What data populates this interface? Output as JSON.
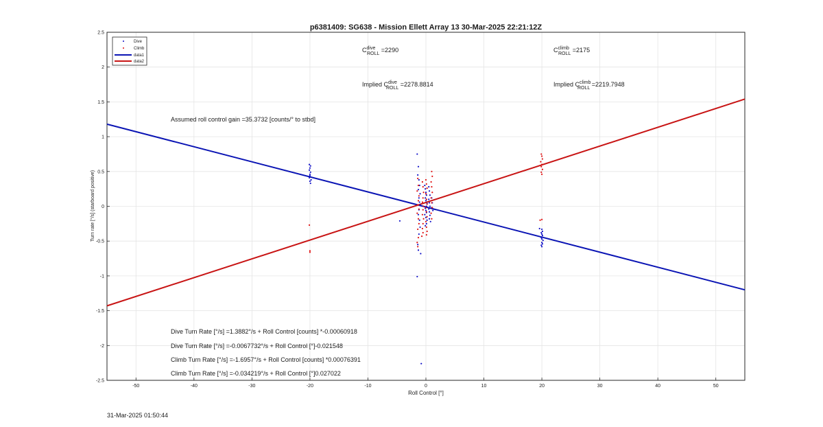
{
  "chart_data": {
    "type": "scatter",
    "title": "p6381409: SG638 - Mission Ellett Array 13 30-Mar-2025 22:21:12Z",
    "xlabel": "Roll Control [°]",
    "ylabel": "Turn rate [°/s] (starboard positive)",
    "xlim": [
      -55,
      55
    ],
    "ylim": [
      -2.5,
      2.5
    ],
    "xticks": [
      -50,
      -40,
      -30,
      -20,
      -10,
      0,
      10,
      20,
      30,
      40,
      50
    ],
    "yticks": [
      -2.5,
      -2,
      -1.5,
      -1,
      -0.5,
      0,
      0.5,
      1,
      1.5,
      2,
      2.5
    ],
    "grid": true,
    "legend_position": "top-left",
    "legend": [
      "Dive",
      "Climb",
      "data1",
      "data2"
    ],
    "colors": {
      "dive": "#1010c8",
      "climb": "#e01010",
      "data1": "#0a14b4",
      "data2": "#c81414"
    },
    "series": [
      {
        "name": "Dive",
        "marker": "dot",
        "points": [
          [
            -20.1,
            0.6
          ],
          [
            -19.9,
            0.58
          ],
          [
            -20.0,
            0.55
          ],
          [
            -20.1,
            0.52
          ],
          [
            -19.9,
            0.49
          ],
          [
            -20.0,
            0.46
          ],
          [
            -20.0,
            0.44
          ],
          [
            -20.1,
            0.41
          ],
          [
            -19.8,
            0.38
          ],
          [
            -20.0,
            0.36
          ],
          [
            -19.9,
            0.33
          ],
          [
            -4.5,
            -0.21
          ],
          [
            -1.5,
            0.75
          ],
          [
            -1.3,
            0.57
          ],
          [
            -1.4,
            0.45
          ],
          [
            -1.2,
            0.38
          ],
          [
            -1.1,
            0.3
          ],
          [
            -1.3,
            0.24
          ],
          [
            -1.0,
            0.18
          ],
          [
            -1.2,
            0.12
          ],
          [
            -1.1,
            0.06
          ],
          [
            -1.0,
            0.02
          ],
          [
            -1.2,
            -0.05
          ],
          [
            -1.3,
            -0.12
          ],
          [
            -1.1,
            -0.2
          ],
          [
            -1.0,
            -0.3
          ],
          [
            -1.2,
            -0.4
          ],
          [
            -1.4,
            -0.55
          ],
          [
            -1.3,
            -0.63
          ],
          [
            -1.5,
            -1.01
          ],
          [
            -0.8,
            -2.26
          ],
          [
            -0.9,
            -0.68
          ],
          [
            -0.2,
            0.3
          ],
          [
            -0.1,
            0.25
          ],
          [
            0.0,
            0.2
          ],
          [
            0.1,
            0.16
          ],
          [
            -0.1,
            0.12
          ],
          [
            0.0,
            0.08
          ],
          [
            0.2,
            0.04
          ],
          [
            0.1,
            0.0
          ],
          [
            -0.1,
            -0.03
          ],
          [
            0.0,
            -0.06
          ],
          [
            0.1,
            -0.09
          ],
          [
            -0.2,
            -0.12
          ],
          [
            0.0,
            -0.16
          ],
          [
            0.2,
            -0.2
          ],
          [
            0.1,
            -0.25
          ],
          [
            -0.1,
            -0.28
          ],
          [
            0.5,
            0.28
          ],
          [
            0.6,
            0.22
          ],
          [
            0.7,
            0.16
          ],
          [
            0.5,
            0.1
          ],
          [
            0.6,
            0.05
          ],
          [
            0.7,
            0.0
          ],
          [
            0.5,
            -0.04
          ],
          [
            0.6,
            -0.08
          ],
          [
            0.7,
            -0.13
          ],
          [
            0.6,
            -0.18
          ],
          [
            0.8,
            -0.22
          ],
          [
            1.0,
            0.12
          ],
          [
            1.1,
            0.05
          ],
          [
            1.0,
            -0.02
          ],
          [
            1.2,
            -0.06
          ],
          [
            19.6,
            -0.32
          ],
          [
            20.0,
            -0.33
          ],
          [
            20.1,
            -0.36
          ],
          [
            19.9,
            -0.38
          ],
          [
            20.0,
            -0.4
          ],
          [
            20.1,
            -0.42
          ],
          [
            19.9,
            -0.45
          ],
          [
            20.0,
            -0.47
          ],
          [
            20.2,
            -0.49
          ],
          [
            20.0,
            -0.52
          ],
          [
            20.1,
            -0.54
          ],
          [
            19.9,
            -0.56
          ],
          [
            20.0,
            -0.58
          ]
        ]
      },
      {
        "name": "Climb",
        "marker": "dot",
        "points": [
          [
            -20.1,
            -0.27
          ],
          [
            -20.0,
            -0.64
          ],
          [
            -20.0,
            -0.66
          ],
          [
            -1.4,
            0.4
          ],
          [
            -1.3,
            0.3
          ],
          [
            -1.5,
            0.22
          ],
          [
            -1.2,
            0.15
          ],
          [
            -1.3,
            0.08
          ],
          [
            -1.4,
            0.02
          ],
          [
            -1.2,
            -0.04
          ],
          [
            -1.5,
            -0.1
          ],
          [
            -1.3,
            -0.18
          ],
          [
            -1.2,
            -0.25
          ],
          [
            -1.4,
            -0.33
          ],
          [
            -1.3,
            -0.45
          ],
          [
            -1.5,
            -0.52
          ],
          [
            -1.4,
            -0.58
          ],
          [
            -0.6,
            0.35
          ],
          [
            -0.5,
            0.28
          ],
          [
            -0.4,
            0.2
          ],
          [
            -0.5,
            0.12
          ],
          [
            -0.6,
            0.06
          ],
          [
            -0.4,
            0.0
          ],
          [
            -0.5,
            -0.05
          ],
          [
            -0.6,
            -0.12
          ],
          [
            -0.4,
            -0.18
          ],
          [
            -0.5,
            -0.25
          ],
          [
            -0.6,
            -0.32
          ],
          [
            -0.5,
            -0.38
          ],
          [
            -0.7,
            -0.43
          ],
          [
            0.0,
            0.38
          ],
          [
            0.1,
            0.32
          ],
          [
            0.2,
            0.26
          ],
          [
            0.0,
            0.18
          ],
          [
            0.1,
            0.1
          ],
          [
            0.2,
            0.03
          ],
          [
            0.0,
            -0.02
          ],
          [
            0.1,
            -0.08
          ],
          [
            0.2,
            -0.15
          ],
          [
            0.0,
            -0.22
          ],
          [
            0.1,
            -0.3
          ],
          [
            0.2,
            -0.36
          ],
          [
            0.1,
            -0.41
          ],
          [
            1.0,
            0.5
          ],
          [
            1.1,
            0.43
          ],
          [
            0.9,
            0.35
          ],
          [
            1.0,
            0.28
          ],
          [
            1.1,
            0.2
          ],
          [
            0.9,
            0.12
          ],
          [
            1.0,
            0.05
          ],
          [
            1.1,
            -0.02
          ],
          [
            0.9,
            -0.1
          ],
          [
            1.0,
            -0.18
          ],
          [
            19.9,
            0.75
          ],
          [
            20.0,
            0.72
          ],
          [
            20.1,
            0.68
          ],
          [
            19.8,
            0.64
          ],
          [
            20.0,
            0.6
          ],
          [
            19.9,
            0.57
          ],
          [
            20.1,
            0.53
          ],
          [
            19.9,
            0.49
          ],
          [
            20.0,
            0.46
          ],
          [
            19.7,
            -0.2
          ],
          [
            20.0,
            -0.19
          ]
        ]
      },
      {
        "name": "data1",
        "type": "line",
        "points": [
          [
            -55,
            1.18
          ],
          [
            55,
            -1.2
          ]
        ]
      },
      {
        "name": "data2",
        "type": "line",
        "points": [
          [
            -55,
            -1.43
          ],
          [
            55,
            1.54
          ]
        ]
      }
    ],
    "annotations": {
      "cdive": {
        "base": "C",
        "sup": "dive",
        "sub": "ROLL",
        "value": " =2290"
      },
      "cclimb": {
        "base": "C",
        "sup": "climb",
        "sub": "ROLL",
        "value": " =2175"
      },
      "implied_dive": {
        "prefix": "Implied C",
        "sup": "dive",
        "sub": "ROLL",
        "value": " =2278.8814"
      },
      "implied_climb": {
        "prefix": "Implied C",
        "sup": "climb",
        "sub": "ROLL",
        "value": " =2219.7948"
      },
      "gain": "Assumed roll control gain =35.3732 [counts/° to stbd]",
      "fits": [
        "Dive Turn Rate [°/s] =1.3882°/s + Roll Control [counts] *-0.00060918",
        "Dive Turn Rate [°/s] =-0.0067732°/s + Roll Control [°]-0.021548",
        "Climb Turn Rate [°/s] =-1.6957°/s + Roll Control [counts] *0.00076391",
        "Climb Turn Rate [°/s] =-0.034219°/s + Roll Control [°]0.027022"
      ]
    }
  },
  "footer": {
    "timestamp": "31-Mar-2025 01:50:44"
  }
}
